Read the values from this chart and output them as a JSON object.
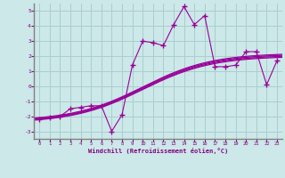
{
  "bg_color": "#cce8e8",
  "grid_color": "#aacece",
  "line_color": "#990099",
  "xlabel": "Windchill (Refroidissement éolien,°C)",
  "xlabel_color": "#800080",
  "tick_color": "#800080",
  "spine_color": "#808080",
  "xlim": [
    -0.5,
    23.5
  ],
  "ylim": [
    -3.5,
    5.5
  ],
  "yticks": [
    -3,
    -2,
    -1,
    0,
    1,
    2,
    3,
    4,
    5
  ],
  "xticks": [
    0,
    1,
    2,
    3,
    4,
    5,
    6,
    7,
    8,
    9,
    10,
    11,
    12,
    13,
    14,
    15,
    16,
    17,
    18,
    19,
    20,
    21,
    22,
    23
  ],
  "scatter_x": [
    0,
    1,
    2,
    3,
    4,
    5,
    6,
    7,
    8,
    9,
    10,
    11,
    12,
    13,
    14,
    15,
    16,
    17,
    18,
    19,
    20,
    21,
    22,
    23
  ],
  "scatter_y": [
    -2.2,
    -2.1,
    -2.0,
    -1.5,
    -1.4,
    -1.3,
    -1.3,
    -3.0,
    -1.9,
    1.4,
    3.0,
    2.9,
    2.7,
    4.1,
    5.3,
    4.1,
    4.7,
    1.3,
    1.3,
    1.4,
    2.3,
    2.3,
    0.1,
    1.7
  ],
  "curve_offsets": [
    0.0,
    0.15,
    0.3,
    0.45
  ],
  "curve_x_start": -0.5,
  "curve_x_end": 23.5,
  "curve_L": 4.5,
  "curve_k": 0.3,
  "curve_x0": 10.0,
  "curve_base": -2.3
}
